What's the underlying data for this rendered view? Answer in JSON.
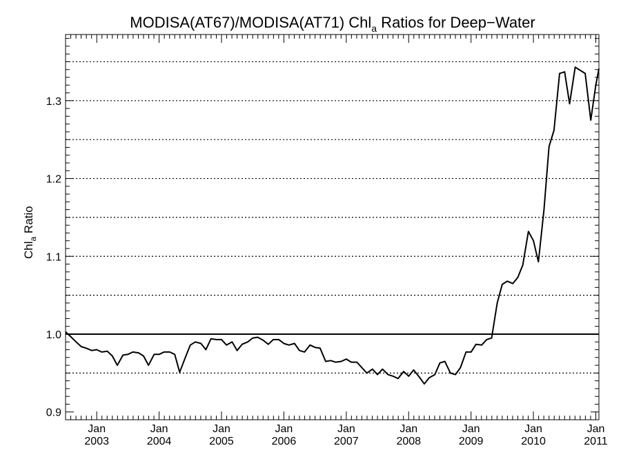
{
  "chart_data": {
    "type": "line",
    "title": {
      "prefix": "MODISA(AT67)/MODISA(AT71)  Chl",
      "subscript": "a",
      "suffix": " Ratios for Deep−Water"
    },
    "ylabel": {
      "prefix": "Chl",
      "subscript": "a",
      "suffix": " Ratio"
    },
    "xlim": [
      2002.5,
      2011.05
    ],
    "ylim": [
      0.89,
      1.385
    ],
    "y_ticks": [
      {
        "value": 0.9,
        "label": "0.9"
      },
      {
        "value": 1.0,
        "label": "1.0"
      },
      {
        "value": 1.1,
        "label": "1.1"
      },
      {
        "value": 1.2,
        "label": "1.2"
      },
      {
        "value": 1.3,
        "label": "1.3"
      }
    ],
    "x_ticks": [
      {
        "value": 2003.0,
        "month": "Jan",
        "year": "2003"
      },
      {
        "value": 2004.0,
        "month": "Jan",
        "year": "2004"
      },
      {
        "value": 2005.0,
        "month": "Jan",
        "year": "2005"
      },
      {
        "value": 2006.0,
        "month": "Jan",
        "year": "2006"
      },
      {
        "value": 2007.0,
        "month": "Jan",
        "year": "2007"
      },
      {
        "value": 2008.0,
        "month": "Jan",
        "year": "2008"
      },
      {
        "value": 2009.0,
        "month": "Jan",
        "year": "2009"
      },
      {
        "value": 2010.0,
        "month": "Jan",
        "year": "2010"
      },
      {
        "value": 2011.0,
        "month": "Jan",
        "year": "2011"
      }
    ],
    "reference_line": 1.0,
    "grid_lines": [
      0.95,
      1.05,
      1.1,
      1.15,
      1.2,
      1.25,
      1.3,
      1.35
    ],
    "grid": "horizontal dotted",
    "series": [
      {
        "x": [
          2002.5,
          2002.58,
          2002.67,
          2002.75,
          2002.83,
          2002.92,
          2003.0,
          2003.08,
          2003.17,
          2003.25,
          2003.33,
          2003.42,
          2003.5,
          2003.58,
          2003.67,
          2003.75,
          2003.83,
          2003.92,
          2004.0,
          2004.08,
          2004.17,
          2004.25,
          2004.33,
          2004.42,
          2004.5,
          2004.58,
          2004.67,
          2004.75,
          2004.83,
          2004.92,
          2005.0,
          2005.08,
          2005.17,
          2005.25,
          2005.33,
          2005.42,
          2005.5,
          2005.58,
          2005.67,
          2005.75,
          2005.83,
          2005.92,
          2006.0,
          2006.08,
          2006.17,
          2006.25,
          2006.33,
          2006.42,
          2006.5,
          2006.58,
          2006.67,
          2006.75,
          2006.83,
          2006.92,
          2007.0,
          2007.08,
          2007.17,
          2007.25,
          2007.33,
          2007.42,
          2007.5,
          2007.58,
          2007.67,
          2007.75,
          2007.83,
          2007.92,
          2008.0,
          2008.08,
          2008.17,
          2008.25,
          2008.33,
          2008.42,
          2008.5,
          2008.58,
          2008.67,
          2008.75,
          2008.83,
          2008.92,
          2009.0,
          2009.08,
          2009.17,
          2009.25,
          2009.33,
          2009.42,
          2009.5,
          2009.58,
          2009.67,
          2009.75,
          2009.83,
          2009.92,
          2010.0,
          2010.08,
          2010.17,
          2010.25,
          2010.33,
          2010.42,
          2010.5,
          2010.58,
          2010.67,
          2010.75,
          2010.83,
          2010.92,
          2011.0,
          2011.05
        ],
        "values": [
          1.003,
          0.997,
          0.99,
          0.984,
          0.982,
          0.979,
          0.98,
          0.977,
          0.978,
          0.972,
          0.96,
          0.973,
          0.974,
          0.977,
          0.976,
          0.972,
          0.96,
          0.974,
          0.974,
          0.977,
          0.977,
          0.974,
          0.951,
          0.97,
          0.986,
          0.99,
          0.988,
          0.98,
          0.994,
          0.993,
          0.993,
          0.986,
          0.99,
          0.979,
          0.987,
          0.99,
          0.995,
          0.996,
          0.992,
          0.987,
          0.993,
          0.993,
          0.988,
          0.986,
          0.988,
          0.979,
          0.977,
          0.986,
          0.983,
          0.982,
          0.965,
          0.966,
          0.964,
          0.965,
          0.968,
          0.964,
          0.964,
          0.957,
          0.95,
          0.955,
          0.948,
          0.955,
          0.948,
          0.946,
          0.943,
          0.952,
          0.946,
          0.954,
          0.945,
          0.936,
          0.944,
          0.948,
          0.963,
          0.965,
          0.95,
          0.948,
          0.957,
          0.977,
          0.977,
          0.987,
          0.986,
          0.993,
          0.995,
          1.04,
          1.064,
          1.068,
          1.065,
          1.073,
          1.089,
          1.132,
          1.12,
          1.093,
          1.16,
          1.241,
          1.262,
          1.335,
          1.337,
          1.296,
          1.343,
          1.339,
          1.335,
          1.275,
          1.32,
          1.341
        ]
      }
    ]
  }
}
